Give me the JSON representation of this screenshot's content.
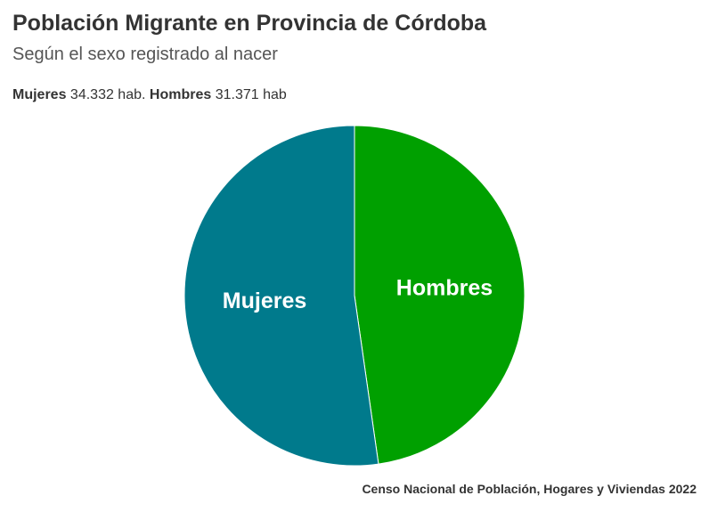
{
  "chart_data": {
    "type": "pie",
    "title": "Población Migrante en Provincia de Córdoba",
    "subtitle": "Según el sexo registrado al nacer",
    "summary": [
      {
        "label": "Mujeres",
        "text": "34.332 hab."
      },
      {
        "label": "Hombres",
        "text": "31.371 hab"
      }
    ],
    "slices": [
      {
        "name": "Hombres",
        "value": 31371,
        "color": "#00A000"
      },
      {
        "name": "Mujeres",
        "value": 34332,
        "color": "#007A8C"
      }
    ],
    "source": "Censo Nacional de Población, Hogares y Viviendas 2022"
  }
}
